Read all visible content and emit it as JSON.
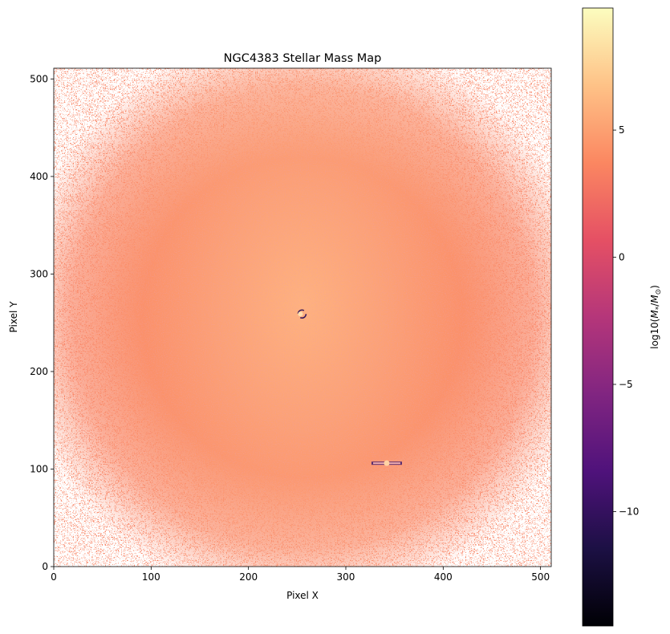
{
  "chart_data": {
    "type": "heatmap",
    "title": "NGC4383 Stellar Mass Map",
    "xlabel": "Pixel X",
    "ylabel": "Pixel Y",
    "xlim": [
      0,
      511
    ],
    "ylim": [
      0,
      511
    ],
    "x_ticks": [
      0,
      100,
      200,
      300,
      400,
      500
    ],
    "x_tick_labels": [
      "0",
      "100",
      "200",
      "300",
      "400",
      "500"
    ],
    "y_ticks": [
      0,
      100,
      200,
      300,
      400,
      500
    ],
    "y_tick_labels": [
      "0",
      "100",
      "200",
      "300",
      "400",
      "500"
    ],
    "colormap": "magma",
    "colorbar": {
      "label_prefix": "log10(",
      "label_var": "M",
      "label_sub1": "*",
      "label_mid": "/",
      "label_sub2": "⊙",
      "label_suffix": ")",
      "range": [
        -14.5,
        9.8
      ],
      "ticks": [
        -10,
        -5,
        0,
        5
      ],
      "tick_labels": [
        "−10",
        "−5",
        "0",
        "5"
      ]
    },
    "galaxy_center": [
      255,
      240
    ],
    "features": [
      {
        "kind": "artifact",
        "x": 255,
        "y": 259
      },
      {
        "kind": "artifact",
        "x": 342,
        "y": 106
      }
    ],
    "colors": {
      "magma_stops": [
        "#000004",
        "#1c1044",
        "#4f127b",
        "#812581",
        "#b5367a",
        "#e55064",
        "#fb8761",
        "#fec287",
        "#fcfdbf"
      ]
    }
  }
}
